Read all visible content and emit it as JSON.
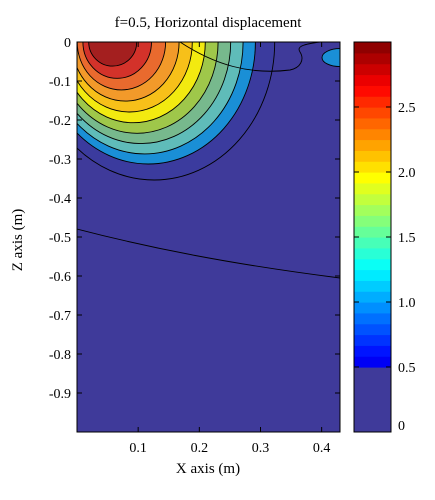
{
  "chart_data": {
    "type": "heatmap",
    "title": "f=0.5, Horizontal displacement",
    "xlabel": "X axis (m)",
    "ylabel": "Z axis (m)",
    "xlim": [
      0,
      0.43
    ],
    "ylim": [
      -1.0,
      0
    ],
    "x_ticks": [
      "0.1",
      "0.2",
      "0.3",
      "0.4"
    ],
    "x_tick_values": [
      0.1,
      0.2,
      0.3,
      0.4
    ],
    "y_ticks": [
      "0",
      "-0.1",
      "-0.2",
      "-0.3",
      "-0.4",
      "-0.5",
      "-0.6",
      "-0.7",
      "-0.8",
      "-0.9"
    ],
    "y_tick_values": [
      0,
      -0.1,
      -0.2,
      -0.3,
      -0.4,
      -0.5,
      -0.6,
      -0.7,
      -0.8,
      -0.9
    ],
    "colorbar": {
      "range": [
        0,
        3.0
      ],
      "ticks": [
        "0",
        "0.5",
        "1.0",
        "1.5",
        "2.0",
        "2.5"
      ],
      "tick_values": [
        0,
        0.5,
        1.0,
        1.5,
        2.0,
        2.5
      ],
      "colormap": "jet"
    },
    "contour_levels": [
      0.1,
      0.5,
      0.75,
      1.0,
      1.25,
      1.5,
      1.75,
      2.0,
      2.25,
      2.5,
      2.75
    ],
    "contour_colors": [
      "#3b3b9e",
      "#1a8fd6",
      "#5fbcb9",
      "#77b98d",
      "#9fc74a",
      "#f2ea10",
      "#f7c019",
      "#f29a2a",
      "#e96a2e",
      "#d3322a",
      "#a41f1f"
    ],
    "background_color": "#3f3a9a",
    "source_point": {
      "x": 0.05,
      "z": 0.0
    },
    "max_value": 3.0
  }
}
